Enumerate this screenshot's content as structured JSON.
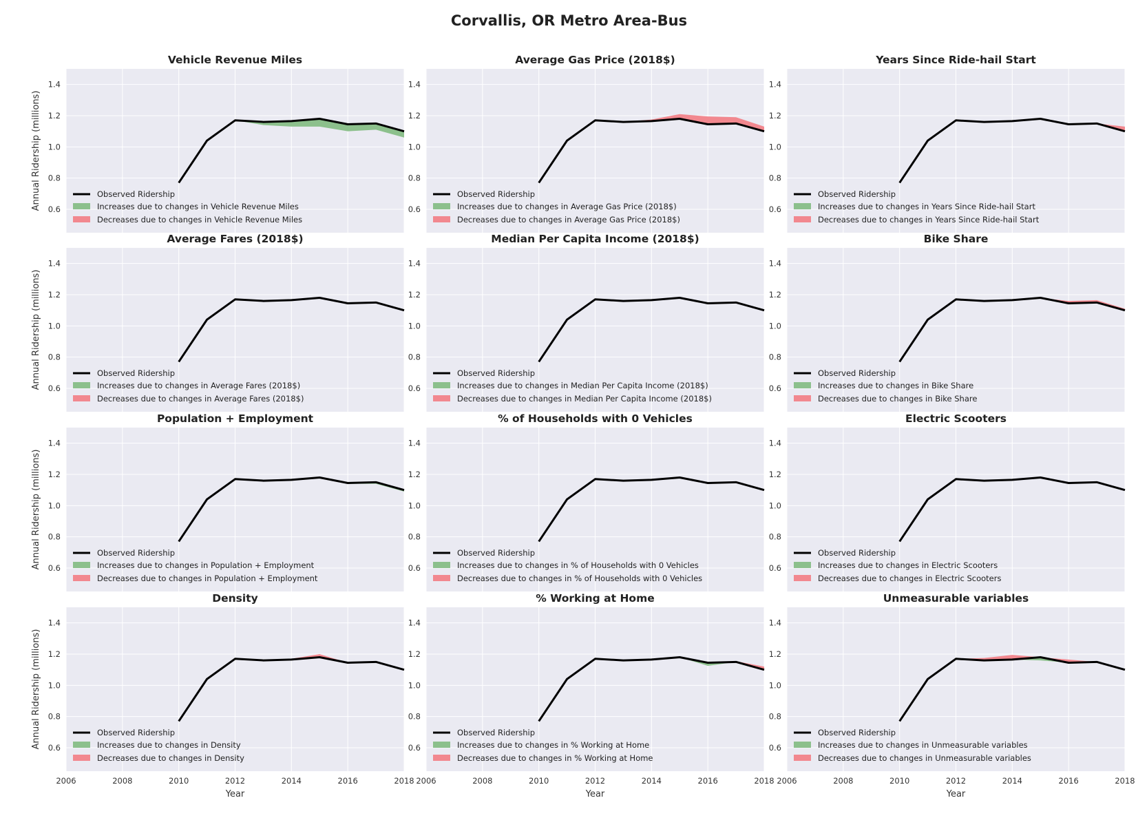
{
  "figure_title": "Corvallis, OR Metro Area-Bus",
  "colors": {
    "panel_bg": "#EAEAF2",
    "grid": "#FFFFFF",
    "observed": "#000000",
    "increase": "#8CC08C",
    "decrease": "#F2888F"
  },
  "chart_data": [
    {
      "type": "area",
      "title": "Vehicle Revenue Miles",
      "xlabel": "",
      "ylabel": "Annual Ridership (millions)",
      "xlim": [
        2006,
        2018
      ],
      "ylim": [
        0.45,
        1.5
      ],
      "xticks": [
        "2006",
        "2008",
        "2010",
        "2012",
        "2014",
        "2016",
        "2018"
      ],
      "yticks": [
        "0.6",
        "0.8",
        "1.0",
        "1.2",
        "1.4"
      ],
      "grid": true,
      "legend_position": "lower-left",
      "x": [
        2010,
        2011,
        2012,
        2013,
        2014,
        2015,
        2016,
        2017,
        2018
      ],
      "series": [
        {
          "name": "Observed Ridership",
          "kind": "line",
          "values": [
            0.77,
            1.04,
            1.17,
            1.16,
            1.165,
            1.18,
            1.145,
            1.15,
            1.1
          ]
        },
        {
          "name": "Increases due to changes in Vehicle Revenue Miles",
          "kind": "fill_below",
          "values": [
            0.77,
            1.04,
            1.17,
            1.14,
            1.13,
            1.13,
            1.1,
            1.11,
            1.06
          ]
        },
        {
          "name": "Decreases due to changes in Vehicle Revenue Miles",
          "kind": "fill_above",
          "values": [
            0.77,
            1.04,
            1.17,
            1.16,
            1.165,
            1.18,
            1.145,
            1.15,
            1.1
          ]
        }
      ]
    },
    {
      "type": "area",
      "title": "Average Gas Price (2018$)",
      "xlabel": "",
      "ylabel": "",
      "xlim": [
        2006,
        2018
      ],
      "ylim": [
        0.45,
        1.5
      ],
      "xticks": [
        "2006",
        "2008",
        "2010",
        "2012",
        "2014",
        "2016",
        "2018"
      ],
      "yticks": [
        "0.6",
        "0.8",
        "1.0",
        "1.2",
        "1.4"
      ],
      "grid": true,
      "legend_position": "lower-left",
      "x": [
        2010,
        2011,
        2012,
        2013,
        2014,
        2015,
        2016,
        2017,
        2018
      ],
      "series": [
        {
          "name": "Observed Ridership",
          "kind": "line",
          "values": [
            0.77,
            1.04,
            1.17,
            1.16,
            1.165,
            1.18,
            1.145,
            1.15,
            1.1
          ]
        },
        {
          "name": "Increases due to changes in Average Gas Price (2018$)",
          "kind": "fill_below",
          "values": [
            0.77,
            1.04,
            1.17,
            1.16,
            1.165,
            1.18,
            1.145,
            1.15,
            1.1
          ]
        },
        {
          "name": "Decreases due to changes in Average Gas Price (2018$)",
          "kind": "fill_above",
          "values": [
            0.77,
            1.04,
            1.17,
            1.16,
            1.175,
            1.21,
            1.195,
            1.19,
            1.13
          ]
        }
      ]
    },
    {
      "type": "area",
      "title": "Years Since Ride-hail Start",
      "xlabel": "",
      "ylabel": "",
      "xlim": [
        2006,
        2018
      ],
      "ylim": [
        0.45,
        1.5
      ],
      "xticks": [
        "2006",
        "2008",
        "2010",
        "2012",
        "2014",
        "2016",
        "2018"
      ],
      "yticks": [
        "0.6",
        "0.8",
        "1.0",
        "1.2",
        "1.4"
      ],
      "grid": true,
      "legend_position": "lower-left",
      "x": [
        2010,
        2011,
        2012,
        2013,
        2014,
        2015,
        2016,
        2017,
        2018
      ],
      "series": [
        {
          "name": "Observed Ridership",
          "kind": "line",
          "values": [
            0.77,
            1.04,
            1.17,
            1.16,
            1.165,
            1.18,
            1.145,
            1.15,
            1.1
          ]
        },
        {
          "name": "Increases due to changes in Years Since Ride-hail Start",
          "kind": "fill_below",
          "values": [
            0.77,
            1.04,
            1.17,
            1.16,
            1.165,
            1.18,
            1.145,
            1.15,
            1.1
          ]
        },
        {
          "name": "Decreases due to changes in Years Since Ride-hail Start",
          "kind": "fill_above",
          "values": [
            0.77,
            1.04,
            1.17,
            1.16,
            1.165,
            1.18,
            1.145,
            1.15,
            1.13
          ]
        }
      ]
    },
    {
      "type": "area",
      "title": "Average Fares (2018$)",
      "xlabel": "",
      "ylabel": "Annual Ridership (millions)",
      "xlim": [
        2006,
        2018
      ],
      "ylim": [
        0.45,
        1.5
      ],
      "xticks": [
        "2006",
        "2008",
        "2010",
        "2012",
        "2014",
        "2016",
        "2018"
      ],
      "yticks": [
        "0.6",
        "0.8",
        "1.0",
        "1.2",
        "1.4"
      ],
      "grid": true,
      "legend_position": "lower-left",
      "x": [
        2010,
        2011,
        2012,
        2013,
        2014,
        2015,
        2016,
        2017,
        2018
      ],
      "series": [
        {
          "name": "Observed Ridership",
          "kind": "line",
          "values": [
            0.77,
            1.04,
            1.17,
            1.16,
            1.165,
            1.18,
            1.145,
            1.15,
            1.1
          ]
        },
        {
          "name": "Increases due to changes in Average Fares (2018$)",
          "kind": "fill_below",
          "values": [
            0.77,
            1.04,
            1.17,
            1.16,
            1.165,
            1.18,
            1.145,
            1.15,
            1.1
          ]
        },
        {
          "name": "Decreases due to changes in Average Fares (2018$)",
          "kind": "fill_above",
          "values": [
            0.77,
            1.04,
            1.17,
            1.16,
            1.165,
            1.18,
            1.145,
            1.15,
            1.1
          ]
        }
      ]
    },
    {
      "type": "area",
      "title": "Median Per Capita Income (2018$)",
      "xlabel": "",
      "ylabel": "",
      "xlim": [
        2006,
        2018
      ],
      "ylim": [
        0.45,
        1.5
      ],
      "xticks": [
        "2006",
        "2008",
        "2010",
        "2012",
        "2014",
        "2016",
        "2018"
      ],
      "yticks": [
        "0.6",
        "0.8",
        "1.0",
        "1.2",
        "1.4"
      ],
      "grid": true,
      "legend_position": "lower-left",
      "x": [
        2010,
        2011,
        2012,
        2013,
        2014,
        2015,
        2016,
        2017,
        2018
      ],
      "series": [
        {
          "name": "Observed Ridership",
          "kind": "line",
          "values": [
            0.77,
            1.04,
            1.17,
            1.16,
            1.165,
            1.18,
            1.145,
            1.15,
            1.1
          ]
        },
        {
          "name": "Increases due to changes in Median Per Capita Income (2018$)",
          "kind": "fill_below",
          "values": [
            0.77,
            1.04,
            1.17,
            1.16,
            1.165,
            1.18,
            1.145,
            1.15,
            1.1
          ]
        },
        {
          "name": "Decreases due to changes in Median Per Capita Income (2018$)",
          "kind": "fill_above",
          "values": [
            0.77,
            1.04,
            1.17,
            1.16,
            1.165,
            1.18,
            1.15,
            1.155,
            1.1
          ]
        }
      ]
    },
    {
      "type": "area",
      "title": "Bike Share",
      "xlabel": "",
      "ylabel": "",
      "xlim": [
        2006,
        2018
      ],
      "ylim": [
        0.45,
        1.5
      ],
      "xticks": [
        "2006",
        "2008",
        "2010",
        "2012",
        "2014",
        "2016",
        "2018"
      ],
      "yticks": [
        "0.6",
        "0.8",
        "1.0",
        "1.2",
        "1.4"
      ],
      "grid": true,
      "legend_position": "lower-left",
      "x": [
        2010,
        2011,
        2012,
        2013,
        2014,
        2015,
        2016,
        2017,
        2018
      ],
      "series": [
        {
          "name": "Observed Ridership",
          "kind": "line",
          "values": [
            0.77,
            1.04,
            1.17,
            1.16,
            1.165,
            1.18,
            1.145,
            1.15,
            1.1
          ]
        },
        {
          "name": "Increases due to changes in Bike Share",
          "kind": "fill_below",
          "values": [
            0.77,
            1.04,
            1.17,
            1.16,
            1.165,
            1.18,
            1.145,
            1.15,
            1.1
          ]
        },
        {
          "name": "Decreases due to changes in Bike Share",
          "kind": "fill_above",
          "values": [
            0.77,
            1.04,
            1.17,
            1.16,
            1.165,
            1.18,
            1.16,
            1.165,
            1.11
          ]
        }
      ]
    },
    {
      "type": "area",
      "title": "Population + Employment",
      "xlabel": "",
      "ylabel": "Annual Ridership (millions)",
      "xlim": [
        2006,
        2018
      ],
      "ylim": [
        0.45,
        1.5
      ],
      "xticks": [
        "2006",
        "2008",
        "2010",
        "2012",
        "2014",
        "2016",
        "2018"
      ],
      "yticks": [
        "0.6",
        "0.8",
        "1.0",
        "1.2",
        "1.4"
      ],
      "grid": true,
      "legend_position": "lower-left",
      "x": [
        2010,
        2011,
        2012,
        2013,
        2014,
        2015,
        2016,
        2017,
        2018
      ],
      "series": [
        {
          "name": "Observed Ridership",
          "kind": "line",
          "values": [
            0.77,
            1.04,
            1.17,
            1.16,
            1.165,
            1.18,
            1.145,
            1.15,
            1.1
          ]
        },
        {
          "name": "Increases due to changes in Population + Employment",
          "kind": "fill_below",
          "values": [
            0.77,
            1.04,
            1.17,
            1.16,
            1.165,
            1.18,
            1.14,
            1.14,
            1.09
          ]
        },
        {
          "name": "Decreases due to changes in Population + Employment",
          "kind": "fill_above",
          "values": [
            0.77,
            1.04,
            1.17,
            1.16,
            1.165,
            1.18,
            1.145,
            1.15,
            1.1
          ]
        }
      ]
    },
    {
      "type": "area",
      "title": "% of Households with 0 Vehicles",
      "xlabel": "",
      "ylabel": "",
      "xlim": [
        2006,
        2018
      ],
      "ylim": [
        0.45,
        1.5
      ],
      "xticks": [
        "2006",
        "2008",
        "2010",
        "2012",
        "2014",
        "2016",
        "2018"
      ],
      "yticks": [
        "0.6",
        "0.8",
        "1.0",
        "1.2",
        "1.4"
      ],
      "grid": true,
      "legend_position": "lower-left",
      "x": [
        2010,
        2011,
        2012,
        2013,
        2014,
        2015,
        2016,
        2017,
        2018
      ],
      "series": [
        {
          "name": "Observed Ridership",
          "kind": "line",
          "values": [
            0.77,
            1.04,
            1.17,
            1.16,
            1.165,
            1.18,
            1.145,
            1.15,
            1.1
          ]
        },
        {
          "name": "Increases due to changes in % of Households with 0 Vehicles",
          "kind": "fill_below",
          "values": [
            0.77,
            1.04,
            1.17,
            1.16,
            1.165,
            1.18,
            1.145,
            1.15,
            1.1
          ]
        },
        {
          "name": "Decreases due to changes in % of Households with 0 Vehicles",
          "kind": "fill_above",
          "values": [
            0.77,
            1.04,
            1.17,
            1.16,
            1.165,
            1.18,
            1.145,
            1.15,
            1.1
          ]
        }
      ]
    },
    {
      "type": "area",
      "title": "Electric Scooters",
      "xlabel": "",
      "ylabel": "",
      "xlim": [
        2006,
        2018
      ],
      "ylim": [
        0.45,
        1.5
      ],
      "xticks": [
        "2006",
        "2008",
        "2010",
        "2012",
        "2014",
        "2016",
        "2018"
      ],
      "yticks": [
        "0.6",
        "0.8",
        "1.0",
        "1.2",
        "1.4"
      ],
      "grid": true,
      "legend_position": "lower-left",
      "x": [
        2010,
        2011,
        2012,
        2013,
        2014,
        2015,
        2016,
        2017,
        2018
      ],
      "series": [
        {
          "name": "Observed Ridership",
          "kind": "line",
          "values": [
            0.77,
            1.04,
            1.17,
            1.16,
            1.165,
            1.18,
            1.145,
            1.15,
            1.1
          ]
        },
        {
          "name": "Increases due to changes in Electric Scooters",
          "kind": "fill_below",
          "values": [
            0.77,
            1.04,
            1.17,
            1.16,
            1.165,
            1.18,
            1.145,
            1.15,
            1.1
          ]
        },
        {
          "name": "Decreases due to changes in Electric Scooters",
          "kind": "fill_above",
          "values": [
            0.77,
            1.04,
            1.17,
            1.16,
            1.165,
            1.18,
            1.145,
            1.15,
            1.1
          ]
        }
      ]
    },
    {
      "type": "area",
      "title": "Density",
      "xlabel": "Year",
      "ylabel": "Annual Ridership (millions)",
      "xlim": [
        2006,
        2018
      ],
      "ylim": [
        0.45,
        1.5
      ],
      "xticks": [
        "2006",
        "2008",
        "2010",
        "2012",
        "2014",
        "2016",
        "2018"
      ],
      "yticks": [
        "0.6",
        "0.8",
        "1.0",
        "1.2",
        "1.4"
      ],
      "grid": true,
      "legend_position": "lower-left",
      "x": [
        2010,
        2011,
        2012,
        2013,
        2014,
        2015,
        2016,
        2017,
        2018
      ],
      "series": [
        {
          "name": "Observed Ridership",
          "kind": "line",
          "values": [
            0.77,
            1.04,
            1.17,
            1.16,
            1.165,
            1.18,
            1.145,
            1.15,
            1.1
          ]
        },
        {
          "name": "Increases due to changes in Density",
          "kind": "fill_below",
          "values": [
            0.77,
            1.04,
            1.17,
            1.16,
            1.165,
            1.18,
            1.145,
            1.15,
            1.1
          ]
        },
        {
          "name": "Decreases due to changes in Density",
          "kind": "fill_above",
          "values": [
            0.77,
            1.04,
            1.17,
            1.16,
            1.17,
            1.2,
            1.145,
            1.15,
            1.1
          ]
        }
      ]
    },
    {
      "type": "area",
      "title": "% Working at Home",
      "xlabel": "Year",
      "ylabel": "",
      "xlim": [
        2006,
        2018
      ],
      "ylim": [
        0.45,
        1.5
      ],
      "xticks": [
        "2006",
        "2008",
        "2010",
        "2012",
        "2014",
        "2016",
        "2018"
      ],
      "yticks": [
        "0.6",
        "0.8",
        "1.0",
        "1.2",
        "1.4"
      ],
      "grid": true,
      "legend_position": "lower-left",
      "x": [
        2010,
        2011,
        2012,
        2013,
        2014,
        2015,
        2016,
        2017,
        2018
      ],
      "series": [
        {
          "name": "Observed Ridership",
          "kind": "line",
          "values": [
            0.77,
            1.04,
            1.17,
            1.16,
            1.165,
            1.18,
            1.145,
            1.15,
            1.1
          ]
        },
        {
          "name": "Increases due to changes in % Working at Home",
          "kind": "fill_below",
          "values": [
            0.77,
            1.04,
            1.17,
            1.16,
            1.165,
            1.18,
            1.125,
            1.15,
            1.1
          ]
        },
        {
          "name": "Decreases due to changes in % Working at Home",
          "kind": "fill_above",
          "values": [
            0.77,
            1.04,
            1.17,
            1.16,
            1.165,
            1.18,
            1.145,
            1.155,
            1.12
          ]
        }
      ]
    },
    {
      "type": "area",
      "title": "Unmeasurable variables",
      "xlabel": "Year",
      "ylabel": "",
      "xlim": [
        2006,
        2018
      ],
      "ylim": [
        0.45,
        1.5
      ],
      "xticks": [
        "2006",
        "2008",
        "2010",
        "2012",
        "2014",
        "2016",
        "2018"
      ],
      "yticks": [
        "0.6",
        "0.8",
        "1.0",
        "1.2",
        "1.4"
      ],
      "grid": true,
      "legend_position": "lower-left",
      "x": [
        2010,
        2011,
        2012,
        2013,
        2014,
        2015,
        2016,
        2017,
        2018
      ],
      "series": [
        {
          "name": "Observed Ridership",
          "kind": "line",
          "values": [
            0.77,
            1.04,
            1.17,
            1.16,
            1.165,
            1.18,
            1.145,
            1.15,
            1.1
          ]
        },
        {
          "name": "Increases due to changes in Unmeasurable variables",
          "kind": "fill_below",
          "values": [
            0.77,
            1.04,
            1.17,
            1.16,
            1.165,
            1.16,
            1.145,
            1.15,
            1.1
          ]
        },
        {
          "name": "Decreases due to changes in Unmeasurable variables",
          "kind": "fill_above",
          "values": [
            0.77,
            1.04,
            1.17,
            1.175,
            1.195,
            1.18,
            1.165,
            1.15,
            1.1
          ]
        }
      ]
    }
  ]
}
